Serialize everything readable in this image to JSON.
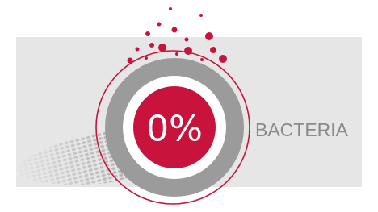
{
  "badge": {
    "value_text": "0%",
    "label": "BACTERIA"
  }
}
